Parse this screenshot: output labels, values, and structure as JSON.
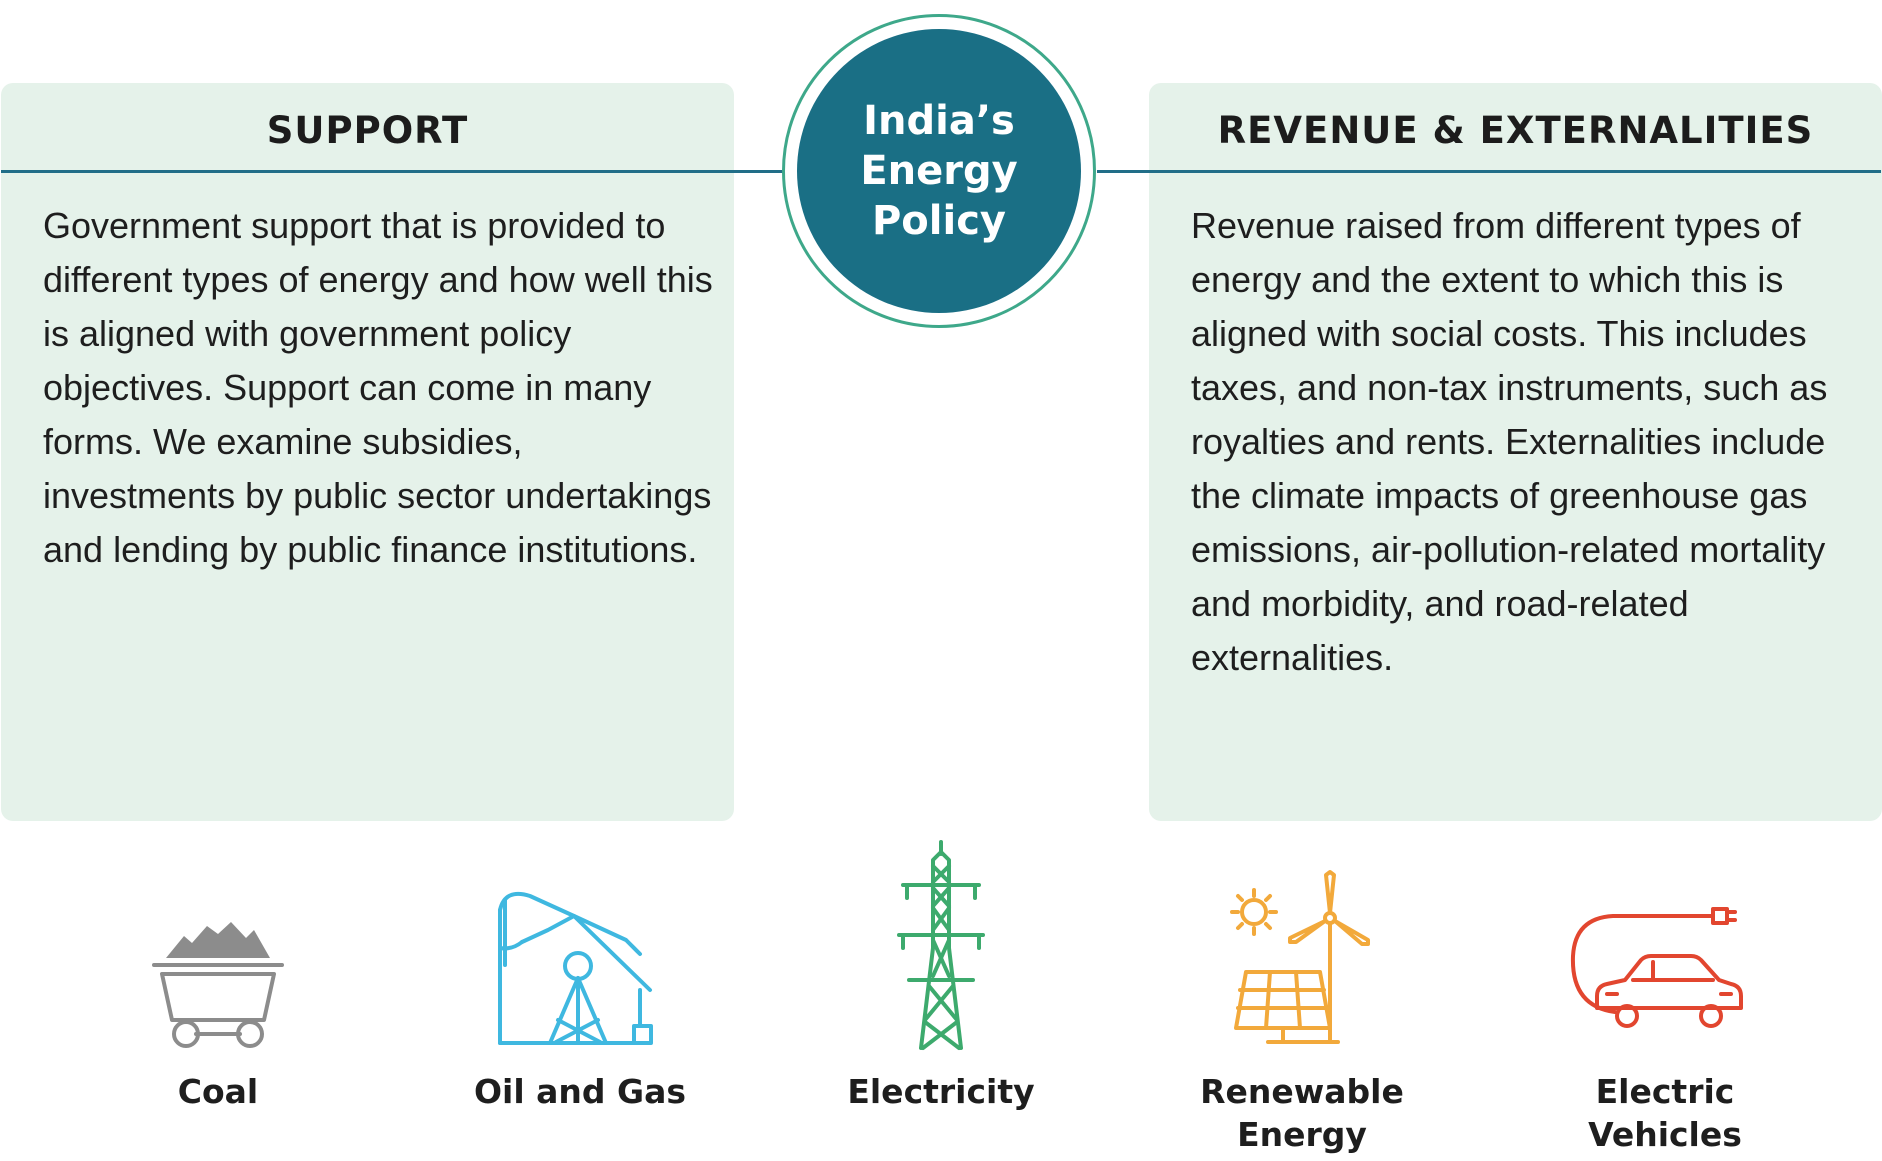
{
  "center": {
    "title": "India’s Energy Policy"
  },
  "support": {
    "title": "SUPPORT",
    "body": "Government support that is provided to different types of energy and how well this is aligned with government policy objectives. Support can come in many forms. We examine subsidies, investments by public sector undertakings and lending by public finance institutions."
  },
  "revenue": {
    "title": "REVENUE & EXTERNALITIES",
    "body": "Revenue raised from different types of energy and the extent to which this is aligned with social costs. This includes taxes, and non-tax instruments, such as royalties and rents. Externalities include the climate impacts of greenhouse gas emissions, air-pollution-related mortality and morbidity, and road-related externalities."
  },
  "energy_types": [
    {
      "label": "Coal",
      "icon": "coal-cart-icon",
      "color": "#8c8c8c"
    },
    {
      "label": "Oil and Gas",
      "icon": "oil-pump-icon",
      "color": "#3fb8e0"
    },
    {
      "label": "Electricity",
      "icon": "power-tower-icon",
      "color": "#3daa6d"
    },
    {
      "label": "Renewable Energy",
      "icon": "solar-wind-icon",
      "color": "#f2a93b"
    },
    {
      "label": "Electric Vehicles",
      "icon": "electric-car-icon",
      "color": "#e2462f"
    }
  ],
  "colors": {
    "panel_bg": "#e5f2ea",
    "hub": "#1a6f85",
    "ring": "#3ea88a",
    "connector": "#216e88"
  }
}
